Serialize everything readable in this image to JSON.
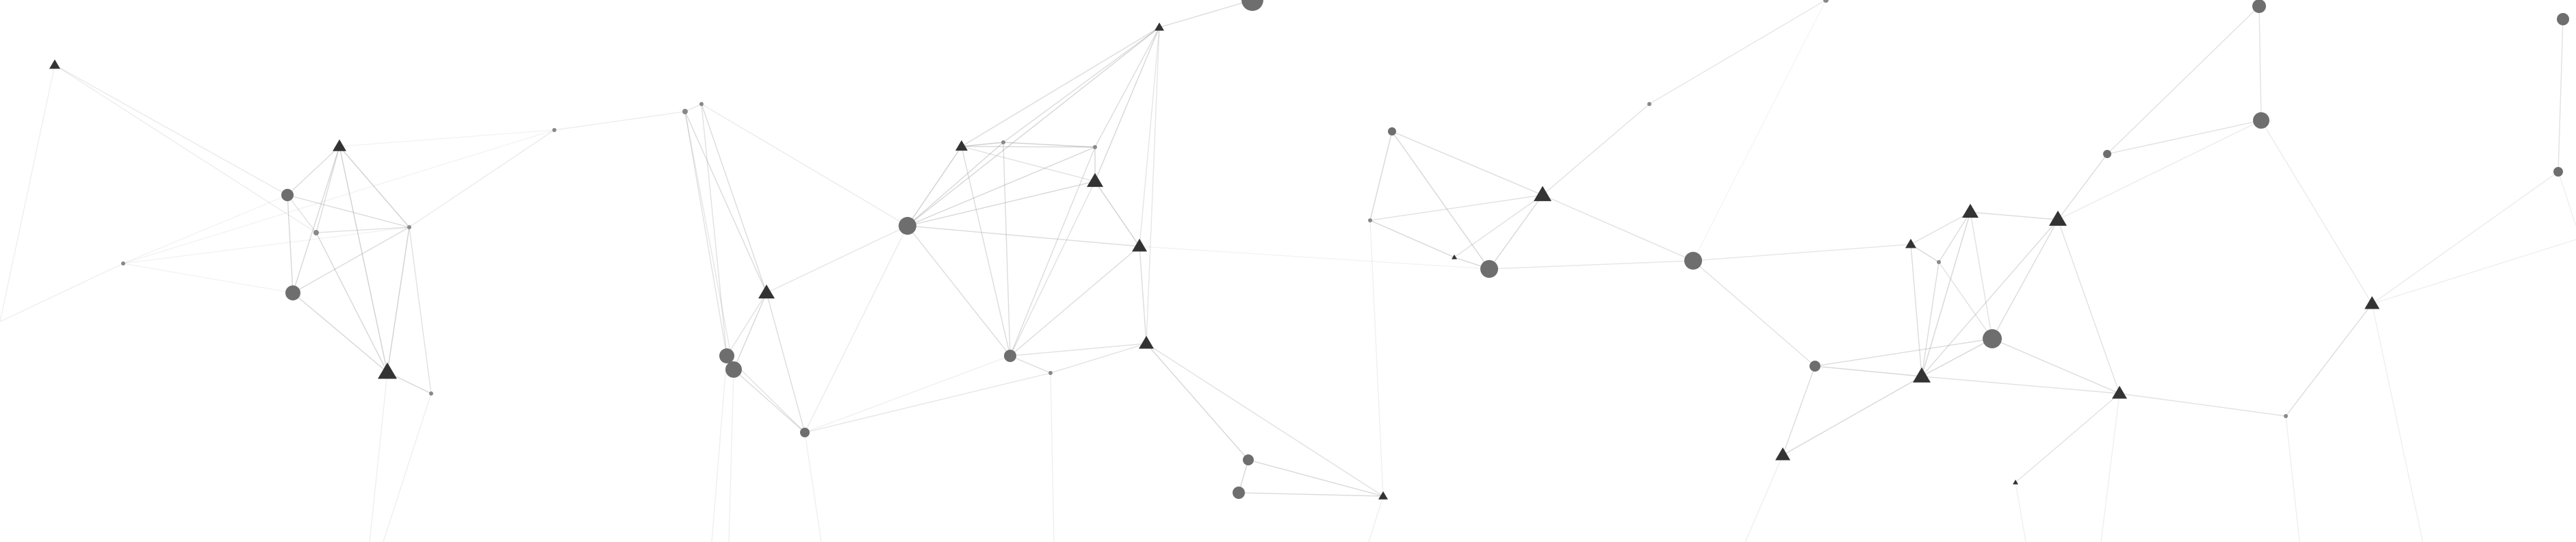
{
  "background_color": "#ffffff",
  "node_color": "#6e6e6e",
  "triangle_color": "#333333",
  "edge_color": "#9a9a9a"
}
